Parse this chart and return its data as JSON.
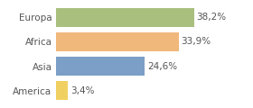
{
  "categories": [
    "America",
    "Asia",
    "Africa",
    "Europa"
  ],
  "values": [
    3.4,
    24.6,
    33.9,
    38.2
  ],
  "labels": [
    "3,4%",
    "24,6%",
    "33,9%",
    "38,2%"
  ],
  "bar_colors": [
    "#f0d060",
    "#7b9fc7",
    "#f0b87a",
    "#a8bf7e"
  ],
  "background_color": "#ffffff",
  "xlim": [
    0,
    46
  ],
  "bar_height": 0.78,
  "label_fontsize": 7.5,
  "ytick_fontsize": 7.5,
  "label_color": "#555555",
  "ytick_color": "#555555",
  "grid_color": "#e0e0e0"
}
